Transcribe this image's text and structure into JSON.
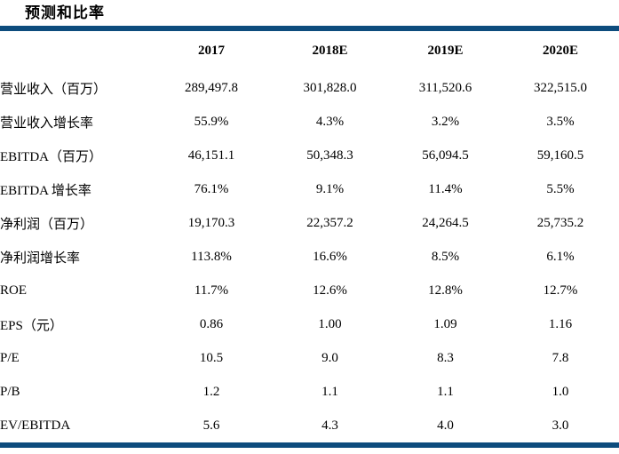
{
  "title": "预测和比率",
  "accent_color": "#0D4C7D",
  "table": {
    "columns": [
      "",
      "2017",
      "2018E",
      "2019E",
      "2020E"
    ],
    "rows": [
      {
        "label": "营业收入（百万）",
        "values": [
          "289,497.8",
          "301,828.0",
          "311,520.6",
          "322,515.0"
        ]
      },
      {
        "label": "营业收入增长率",
        "values": [
          "55.9%",
          "4.3%",
          "3.2%",
          "3.5%"
        ]
      },
      {
        "label": "EBITDA（百万）",
        "values": [
          "46,151.1",
          "50,348.3",
          "56,094.5",
          "59,160.5"
        ]
      },
      {
        "label": "EBITDA 增长率",
        "values": [
          "76.1%",
          "9.1%",
          "11.4%",
          "5.5%"
        ]
      },
      {
        "label": "净利润（百万）",
        "values": [
          "19,170.3",
          "22,357.2",
          "24,264.5",
          "25,735.2"
        ]
      },
      {
        "label": "净利润增长率",
        "values": [
          "113.8%",
          "16.6%",
          "8.5%",
          "6.1%"
        ]
      },
      {
        "label": "ROE",
        "values": [
          "11.7%",
          "12.6%",
          "12.8%",
          "12.7%"
        ]
      },
      {
        "label": "EPS（元）",
        "values": [
          "0.86",
          "1.00",
          "1.09",
          "1.16"
        ]
      },
      {
        "label": "P/E",
        "values": [
          "10.5",
          "9.0",
          "8.3",
          "7.8"
        ]
      },
      {
        "label": "P/B",
        "values": [
          "1.2",
          "1.1",
          "1.1",
          "1.0"
        ]
      },
      {
        "label": "EV/EBITDA",
        "values": [
          "5.6",
          "4.3",
          "4.0",
          "3.0"
        ]
      }
    ]
  }
}
